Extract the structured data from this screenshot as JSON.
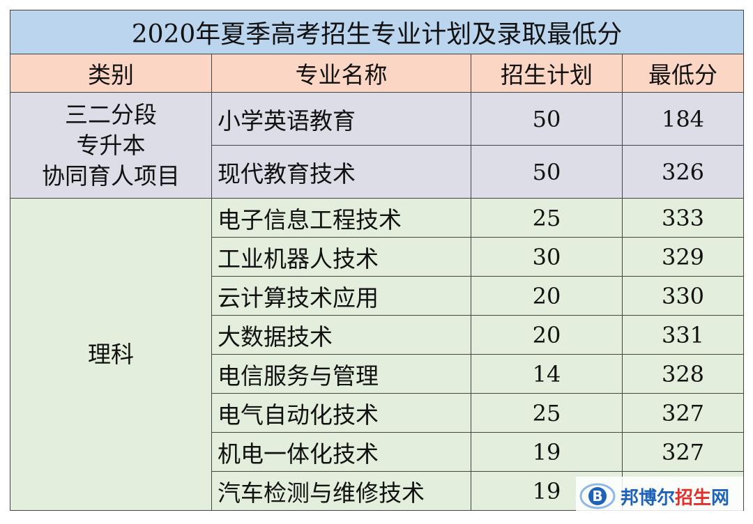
{
  "title": "2020年夏季高考招生专业计划及录取最低分",
  "headers": [
    "类别",
    "专业名称",
    "招生计划",
    "最低分"
  ],
  "groups": [
    {
      "category_lines": [
        "三二分段",
        "专升本",
        "协同育人项目"
      ],
      "rows": [
        {
          "major": "小学英语教育",
          "plan": "50",
          "min": "184"
        },
        {
          "major": "现代教育技术",
          "plan": "50",
          "min": "326"
        }
      ]
    },
    {
      "category_lines": [
        "理科"
      ],
      "rows": [
        {
          "major": "电子信息工程技术",
          "plan": "25",
          "min": "333"
        },
        {
          "major": "工业机器人技术",
          "plan": "30",
          "min": "329"
        },
        {
          "major": "云计算技术应用",
          "plan": "20",
          "min": "330"
        },
        {
          "major": "大数据技术",
          "plan": "20",
          "min": "331"
        },
        {
          "major": "电信服务与管理",
          "plan": "14",
          "min": "328"
        },
        {
          "major": "电气自动化技术",
          "plan": "25",
          "min": "327"
        },
        {
          "major": "机电一体化技术",
          "plan": "19",
          "min": "327"
        },
        {
          "major": "汽车检测与维修技术",
          "plan": "19",
          "min": ""
        }
      ]
    }
  ],
  "watermark": {
    "logo_icon": "b-circle-logo-icon",
    "text_blue": "邦博尔",
    "text_red": "招生",
    "text_blue2": "网",
    "colors": {
      "blue": "#1f63b8",
      "red": "#e0302b"
    }
  }
}
